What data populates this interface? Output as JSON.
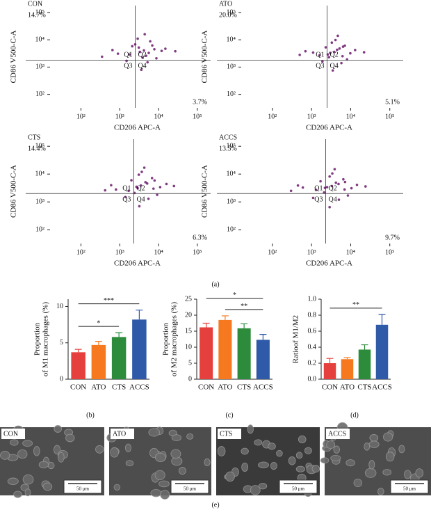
{
  "chart_data": [
    {
      "type": "scatter",
      "label": "CON",
      "xlabel": "CD206 APC-A",
      "ylabel": "CD86 V500-C-A",
      "log": true,
      "color": "#6b1a6b",
      "xlim": [
        16,
        220000
      ],
      "ylim": [
        32,
        180000
      ],
      "xticks": [
        {
          "value": 100,
          "label": "10²"
        },
        {
          "value": 1000,
          "label": "10³"
        },
        {
          "value": 10000,
          "label": "10⁴"
        },
        {
          "value": 100000,
          "label": "10⁵"
        }
      ],
      "yticks": [
        {
          "value": 100,
          "label": "10²"
        },
        {
          "value": 1000,
          "label": "10³"
        },
        {
          "value": 10000,
          "label": "10⁴"
        },
        {
          "value": 100000,
          "label": "10⁵"
        }
      ],
      "gate": [
        2500,
        1800
      ],
      "quadrants": [
        "Q1",
        "Q2",
        "Q3",
        "Q4"
      ],
      "annotations": [
        {
          "text": "14.7%",
          "corner": "top-left"
        },
        {
          "text": "3.7%",
          "corner": "bottom-right"
        }
      ],
      "x": [
        4200,
        3100,
        5600,
        2500,
        7800,
        1800,
        3900,
        6100,
        12000,
        900,
        2900,
        4800,
        350,
        15000,
        5200,
        3300,
        2100,
        8800,
        650,
        4400,
        27000,
        1500,
        6900,
        3600
      ],
      "y": [
        4100,
        5200,
        3300,
        6800,
        4500,
        2900,
        2200,
        8800,
        3900,
        3100,
        11000,
        2600,
        2400,
        4700,
        1500,
        3600,
        5800,
        2100,
        4200,
        16000,
        3800,
        1700,
        6200,
        800
      ]
    },
    {
      "type": "scatter",
      "label": "ATO",
      "xlabel": "CD206 APC-A",
      "ylabel": "CD86 V500-C-A",
      "log": true,
      "color": "#6b1a6b",
      "xlim": [
        16,
        220000
      ],
      "ylim": [
        32,
        180000
      ],
      "xticks": [
        {
          "value": 100,
          "label": "10²"
        },
        {
          "value": 1000,
          "label": "10³"
        },
        {
          "value": 10000,
          "label": "10⁴"
        },
        {
          "value": 100000,
          "label": "10⁵"
        }
      ],
      "yticks": [
        {
          "value": 100,
          "label": "10²"
        },
        {
          "value": 1000,
          "label": "10³"
        },
        {
          "value": 10000,
          "label": "10⁴"
        },
        {
          "value": 100000,
          "label": "10⁵"
        }
      ],
      "gate": [
        2500,
        1800
      ],
      "quadrants": [
        "Q1",
        "Q2",
        "Q3",
        "Q4"
      ],
      "annotations": [
        {
          "text": "20.0%",
          "corner": "top-left"
        },
        {
          "text": "5.1%",
          "corner": "bottom-right"
        }
      ],
      "x": [
        3800,
        5200,
        2600,
        7100,
        4500,
        1600,
        9800,
        3300,
        6200,
        1100,
        4100,
        2800,
        500,
        13000,
        5800,
        3000,
        2300,
        8100,
        700,
        4700,
        22000,
        1900,
        6400,
        3500
      ],
      "y": [
        3600,
        4800,
        2900,
        6100,
        4300,
        2700,
        3200,
        7900,
        2500,
        3400,
        9800,
        2300,
        2800,
        4200,
        1400,
        3300,
        5300,
        1900,
        3800,
        14000,
        3500,
        1600,
        5600,
        750
      ]
    },
    {
      "type": "scatter",
      "label": "CTS",
      "xlabel": "CD206 APC-A",
      "ylabel": "CD86 V500-C-A",
      "log": true,
      "color": "#6b1a6b",
      "xlim": [
        16,
        220000
      ],
      "ylim": [
        32,
        180000
      ],
      "xticks": [
        {
          "value": 100,
          "label": "10²"
        },
        {
          "value": 1000,
          "label": "10³"
        },
        {
          "value": 10000,
          "label": "10⁴"
        },
        {
          "value": 100000,
          "label": "10⁵"
        }
      ],
      "yticks": [
        {
          "value": 100,
          "label": "10²"
        },
        {
          "value": 1000,
          "label": "10³"
        },
        {
          "value": 10000,
          "label": "10⁴"
        },
        {
          "value": 100000,
          "label": "10⁵"
        }
      ],
      "gate": [
        2300,
        2000
      ],
      "quadrants": [
        "Q1",
        "Q2",
        "Q3",
        "Q4"
      ],
      "annotations": [
        {
          "text": "14.4%",
          "corner": "top-left"
        },
        {
          "text": "6.3%",
          "corner": "bottom-right"
        }
      ],
      "x": [
        3500,
        4600,
        2900,
        6800,
        5100,
        1700,
        11000,
        3100,
        7400,
        800,
        3700,
        2400,
        420,
        16000,
        5500,
        2700,
        2000,
        9200,
        600,
        4300,
        25000,
        1400,
        7900,
        3200
      ],
      "y": [
        3900,
        5100,
        3100,
        7200,
        4600,
        2500,
        3400,
        9500,
        3000,
        2800,
        12000,
        2100,
        2600,
        4400,
        1300,
        3500,
        6000,
        1800,
        4000,
        17000,
        3700,
        1500,
        5900,
        700
      ]
    },
    {
      "type": "scatter",
      "label": "ACCS",
      "xlabel": "CD206 APC-A",
      "ylabel": "CD86 V500-C-A",
      "log": true,
      "color": "#6b1a6b",
      "xlim": [
        16,
        220000
      ],
      "ylim": [
        32,
        180000
      ],
      "xticks": [
        {
          "value": 100,
          "label": "10²"
        },
        {
          "value": 1000,
          "label": "10³"
        },
        {
          "value": 10000,
          "label": "10⁴"
        },
        {
          "value": 100000,
          "label": "10⁵"
        }
      ],
      "yticks": [
        {
          "value": 100,
          "label": "10²"
        },
        {
          "value": 1000,
          "label": "10³"
        },
        {
          "value": 10000,
          "label": "10⁴"
        },
        {
          "value": 100000,
          "label": "10⁵"
        }
      ],
      "gate": [
        2300,
        2000
      ],
      "quadrants": [
        "Q1",
        "Q2",
        "Q3",
        "Q4"
      ],
      "annotations": [
        {
          "text": "13.5%",
          "corner": "top-left"
        },
        {
          "text": "9.7%",
          "corner": "bottom-right"
        }
      ],
      "x": [
        3300,
        4200,
        2200,
        6500,
        4900,
        1300,
        10500,
        2900,
        7000,
        600,
        3400,
        2100,
        300,
        14500,
        5000,
        2500,
        1700,
        8500,
        450,
        3900,
        24000,
        1100,
        7200,
        2900
      ],
      "y": [
        3700,
        4900,
        3200,
        6500,
        4400,
        2700,
        3100,
        8200,
        2800,
        3300,
        10500,
        2200,
        2500,
        4100,
        1200,
        3400,
        5500,
        1700,
        3900,
        15000,
        3600,
        1400,
        5200,
        650
      ]
    },
    {
      "type": "bar",
      "ylabel": [
        "Proportion",
        "of M1 macrophages (%)"
      ],
      "categories": [
        "CON",
        "ATO",
        "CTS",
        "ACCS"
      ],
      "values": [
        3.7,
        4.7,
        5.8,
        8.2
      ],
      "errors": [
        0.4,
        0.5,
        0.6,
        1.3
      ],
      "colors": [
        "#e5403d",
        "#f7791f",
        "#2c8c3c",
        "#2f5aa8"
      ],
      "ylim": [
        0,
        11
      ],
      "yticks": [
        0,
        5,
        10
      ],
      "brackets": [
        {
          "text": "***",
          "between": [
            "CON",
            "ACCS"
          ]
        },
        {
          "text": "*",
          "between": [
            "CON",
            "CTS"
          ]
        }
      ]
    },
    {
      "type": "bar",
      "ylabel": [
        "Proportion",
        "of M2 macrophages (%)"
      ],
      "categories": [
        "CON",
        "ATO",
        "CTS",
        "ACCS"
      ],
      "values": [
        16.2,
        18.5,
        15.9,
        12.3
      ],
      "errors": [
        1.3,
        1.3,
        1.4,
        1.7
      ],
      "colors": [
        "#e5403d",
        "#f7791f",
        "#2c8c3c",
        "#2f5aa8"
      ],
      "ylim": [
        0,
        25
      ],
      "yticks": [
        0,
        5,
        10,
        15,
        20,
        25
      ],
      "brackets": [
        {
          "text": "*",
          "between": [
            "CON",
            "ACCS"
          ]
        },
        {
          "text": "**",
          "between": [
            "ATO",
            "ACCS"
          ]
        }
      ]
    },
    {
      "type": "bar",
      "ylabel": [
        "Ratioof M1/M2"
      ],
      "categories": [
        "CON",
        "ATO",
        "CTS",
        "ACCS"
      ],
      "values": [
        0.2,
        0.25,
        0.37,
        0.68
      ],
      "errors": [
        0.06,
        0.02,
        0.06,
        0.13
      ],
      "colors": [
        "#e5403d",
        "#f7791f",
        "#2c8c3c",
        "#2f5aa8"
      ],
      "ylim": [
        0,
        1
      ],
      "yticks": [
        {
          "value": 0,
          "label": "0.0"
        },
        0.2,
        0.4,
        0.6,
        0.8,
        {
          "value": 1,
          "label": "1.0"
        }
      ],
      "brackets": [
        {
          "text": "**",
          "between": [
            "CON",
            "ACCS"
          ]
        }
      ]
    }
  ],
  "panels": [
    "(a)",
    "(b)",
    "(c)",
    "(d)",
    "(e)"
  ],
  "micrographs": [
    {
      "label": "CON",
      "scale": "50 μm"
    },
    {
      "label": "ATO",
      "scale": "50 μm"
    },
    {
      "label": "CTS",
      "scale": "50 μm"
    },
    {
      "label": "ACCS",
      "scale": "50 μm"
    }
  ]
}
